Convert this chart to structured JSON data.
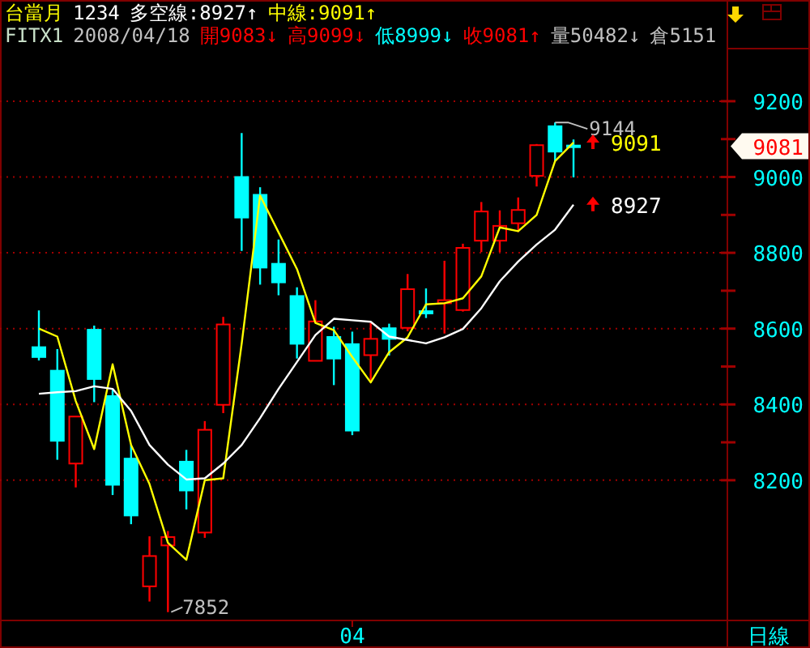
{
  "chart_data": {
    "type": "candlestick",
    "categories": [
      null,
      null,
      null,
      null,
      null,
      null,
      null,
      null,
      null,
      null,
      null,
      null,
      null,
      null,
      null,
      null,
      null,
      "04",
      null,
      null,
      null,
      null,
      null,
      null,
      null,
      null,
      null,
      null,
      null,
      null
    ],
    "ohlc": [
      [
        8551,
        8648,
        8516,
        8525
      ],
      [
        8489,
        8546,
        8254,
        8304
      ],
      [
        8244,
        8368,
        8181,
        8368
      ],
      [
        8597,
        8608,
        8406,
        8467
      ],
      [
        8422,
        8441,
        8161,
        8188
      ],
      [
        8257,
        8293,
        8084,
        8107
      ],
      [
        7920,
        8052,
        7880,
        8000
      ],
      [
        8028,
        8066,
        7852,
        8050
      ],
      [
        8249,
        8280,
        8123,
        8173
      ],
      [
        8062,
        8356,
        8048,
        8333
      ],
      [
        8399,
        8631,
        8377,
        8611
      ],
      [
        9000,
        9116,
        8805,
        8893
      ],
      [
        8953,
        8973,
        8716,
        8761
      ],
      [
        8771,
        8835,
        8688,
        8722
      ],
      [
        8686,
        8709,
        8521,
        8560
      ],
      [
        8515,
        8675,
        8515,
        8619
      ],
      [
        8578,
        8605,
        8451,
        8521
      ],
      [
        8559,
        8592,
        8319,
        8331
      ],
      [
        8530,
        8615,
        8458,
        8573
      ],
      [
        8601,
        8613,
        8529,
        8573
      ],
      [
        8602,
        8744,
        8593,
        8704
      ],
      [
        8646,
        8706,
        8628,
        8640
      ],
      [
        8667,
        8779,
        8587,
        8675
      ],
      [
        8649,
        8824,
        8645,
        8813
      ],
      [
        8832,
        8934,
        8802,
        8909
      ],
      [
        8832,
        8912,
        8802,
        8871
      ],
      [
        8878,
        8946,
        8855,
        8913
      ],
      [
        9003,
        9087,
        8975,
        9084
      ],
      [
        9134,
        9144,
        9042,
        9067
      ],
      [
        9083,
        9099,
        8999,
        9081
      ]
    ],
    "colors": [
      "#00ffff",
      "#00ffff",
      "#ff0000",
      "#00ffff",
      "#00ffff",
      "#00ffff",
      "#ff0000",
      "#ff0000",
      "#00ffff",
      "#ff0000",
      "#ff0000",
      "#00ffff",
      "#00ffff",
      "#00ffff",
      "#00ffff",
      "#ff0000",
      "#00ffff",
      "#00ffff",
      "#ff0000",
      "#00ffff",
      "#ff0000",
      "#00ffff",
      "#ff0000",
      "#ff0000",
      "#ff0000",
      "#ff0000",
      "#ff0000",
      "#ff0000",
      "#00ffff",
      "#00ffff"
    ],
    "series": [
      {
        "type": "line",
        "color": "#ffff00",
        "values": [
          8600,
          8579,
          8409,
          8282,
          8506,
          8293,
          8190,
          8035,
          7990,
          8200,
          8205,
          8560,
          8951,
          8854,
          8757,
          8615,
          8596,
          8525,
          8458,
          8538,
          8577,
          8664,
          8667,
          8680,
          8738,
          8867,
          8857,
          8900,
          9042,
          9091
        ]
      },
      {
        "type": "line",
        "color": "#ffffff",
        "values": [
          8428,
          8432,
          8435,
          8448,
          8441,
          8383,
          8293,
          8241,
          8202,
          8205,
          8244,
          8293,
          8364,
          8441,
          8512,
          8583,
          8626,
          8622,
          8618,
          8579,
          8570,
          8561,
          8577,
          8599,
          8654,
          8725,
          8777,
          8822,
          8861,
          8927
        ]
      }
    ],
    "ylim": [
      7830,
      9467
    ],
    "yticks": [
      8200,
      8400,
      8600,
      8800,
      9000,
      9200
    ],
    "grid": "y",
    "annotations": [
      "台當月",
      "1234",
      "多空線:8927↑",
      "中線:9091↑",
      "FITX1",
      "2008/04/18",
      "開9083↓",
      "高9099↓",
      "低8999↓",
      "收9081↑",
      "量50482↓",
      "倉5151",
      "日線",
      "9144",
      "9091",
      "8927",
      "7852",
      "9081"
    ]
  }
}
